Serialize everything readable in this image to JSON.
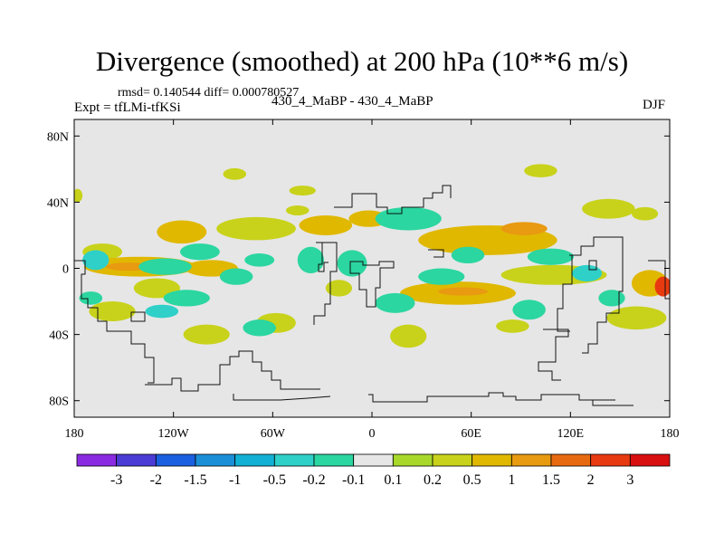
{
  "chart_data": {
    "type": "heatmap",
    "title": "Divergence (smoothed) at 200 hPa (10**6 m/s)",
    "stats": "rmsd= 0.140544 diff= 0.000780527",
    "left_label": "Expt = tfLMi-tfKSi",
    "center_label": "430_4_MaBP - 430_4_MaBP",
    "right_label": "DJF",
    "x_ticks": [
      {
        "value": -180,
        "label": "180"
      },
      {
        "value": -120,
        "label": "120W"
      },
      {
        "value": -60,
        "label": "60W"
      },
      {
        "value": 0,
        "label": "0"
      },
      {
        "value": 60,
        "label": "60E"
      },
      {
        "value": 120,
        "label": "120E"
      },
      {
        "value": 180,
        "label": "180"
      }
    ],
    "y_ticks": [
      {
        "value": 80,
        "label": "80N"
      },
      {
        "value": 40,
        "label": "40N"
      },
      {
        "value": 0,
        "label": "0"
      },
      {
        "value": -40,
        "label": "40S"
      },
      {
        "value": -80,
        "label": "80S"
      }
    ],
    "xlim": [
      -180,
      180
    ],
    "ylim": [
      -90,
      90
    ],
    "colorbar": {
      "labels": [
        "-3",
        "-2",
        "-1.5",
        "-1",
        "-0.5",
        "-0.2",
        "-0.1",
        "0.1",
        "0.2",
        "0.5",
        "1",
        "1.5",
        "2",
        "3"
      ],
      "colors": [
        "#8a2be2",
        "#4b3cd6",
        "#1a5fe0",
        "#1a8fd8",
        "#12b0d4",
        "#2ed0c8",
        "#2bd6a0",
        "#e6e6e6",
        "#a8d82a",
        "#c8d21a",
        "#e0b800",
        "#e89a10",
        "#e86a10",
        "#e83a10",
        "#d81010"
      ]
    },
    "positive_blobs": [
      {
        "lon": -163,
        "lat": 10,
        "rx": 12,
        "ry": 5,
        "value": 0.2
      },
      {
        "lon": -140,
        "lat": 1,
        "rx": 34,
        "ry": 6,
        "value": 0.5
      },
      {
        "lon": -147,
        "lat": 1,
        "rx": 14,
        "ry": 2.5,
        "value": 1
      },
      {
        "lon": -97,
        "lat": 0,
        "rx": 16,
        "ry": 5,
        "value": 0.5
      },
      {
        "lon": -115,
        "lat": 22,
        "rx": 15,
        "ry": 7,
        "value": 0.5
      },
      {
        "lon": -70,
        "lat": 24,
        "rx": 24,
        "ry": 7,
        "value": 0.2
      },
      {
        "lon": -28,
        "lat": 26,
        "rx": 16,
        "ry": 6,
        "value": 0.5
      },
      {
        "lon": -45,
        "lat": 35,
        "rx": 7,
        "ry": 3,
        "value": 0.2
      },
      {
        "lon": -2,
        "lat": 30,
        "rx": 12,
        "ry": 5,
        "value": 0.5
      },
      {
        "lon": -83,
        "lat": 57,
        "rx": 7,
        "ry": 3.5,
        "value": 0.2
      },
      {
        "lon": -42,
        "lat": 47,
        "rx": 8,
        "ry": 3,
        "value": 0.2
      },
      {
        "lon": 70,
        "lat": 17,
        "rx": 42,
        "ry": 9,
        "value": 0.5
      },
      {
        "lon": 92,
        "lat": 24,
        "rx": 14,
        "ry": 4,
        "value": 1
      },
      {
        "lon": 143,
        "lat": 36,
        "rx": 16,
        "ry": 6,
        "value": 0.2
      },
      {
        "lon": 165,
        "lat": 33,
        "rx": 8,
        "ry": 4,
        "value": 0.2
      },
      {
        "lon": 102,
        "lat": 59,
        "rx": 10,
        "ry": 4,
        "value": 0.2
      },
      {
        "lon": 110,
        "lat": -4,
        "rx": 32,
        "ry": 6,
        "value": 0.2
      },
      {
        "lon": 52,
        "lat": -15,
        "rx": 35,
        "ry": 7,
        "value": 0.5
      },
      {
        "lon": 55,
        "lat": -14,
        "rx": 15,
        "ry": 2.5,
        "value": 1
      },
      {
        "lon": 168,
        "lat": -9,
        "rx": 11,
        "ry": 8,
        "value": 0.5
      },
      {
        "lon": 176,
        "lat": -11,
        "rx": 5,
        "ry": 6,
        "value": 2
      },
      {
        "lon": 160,
        "lat": -30,
        "rx": 18,
        "ry": 7,
        "value": 0.2
      },
      {
        "lon": 85,
        "lat": -35,
        "rx": 10,
        "ry": 4,
        "value": 0.2
      },
      {
        "lon": -130,
        "lat": -12,
        "rx": 14,
        "ry": 6,
        "value": 0.2
      },
      {
        "lon": -157,
        "lat": -26,
        "rx": 14,
        "ry": 6,
        "value": 0.2
      },
      {
        "lon": -100,
        "lat": -40,
        "rx": 14,
        "ry": 6,
        "value": 0.2
      },
      {
        "lon": -58,
        "lat": -33,
        "rx": 12,
        "ry": 6,
        "value": 0.2
      },
      {
        "lon": 22,
        "lat": -41,
        "rx": 11,
        "ry": 7,
        "value": 0.2
      },
      {
        "lon": -20,
        "lat": -12,
        "rx": 8,
        "ry": 5,
        "value": 0.2
      },
      {
        "lon": -178,
        "lat": 44,
        "rx": 3,
        "ry": 4,
        "value": 0.2
      }
    ],
    "negative_blobs": [
      {
        "lon": -167,
        "lat": 5,
        "rx": 8,
        "ry": 6,
        "value": -0.5
      },
      {
        "lon": -125,
        "lat": 1,
        "rx": 16,
        "ry": 5,
        "value": -0.2
      },
      {
        "lon": -104,
        "lat": 10,
        "rx": 12,
        "ry": 5,
        "value": -0.2
      },
      {
        "lon": -112,
        "lat": -18,
        "rx": 14,
        "ry": 5,
        "value": -0.2
      },
      {
        "lon": -127,
        "lat": -26,
        "rx": 10,
        "ry": 4,
        "value": -0.5
      },
      {
        "lon": -82,
        "lat": -5,
        "rx": 10,
        "ry": 5,
        "value": -0.2
      },
      {
        "lon": -68,
        "lat": 5,
        "rx": 9,
        "ry": 4,
        "value": -0.2
      },
      {
        "lon": -37,
        "lat": 5,
        "rx": 8,
        "ry": 8,
        "value": -0.2
      },
      {
        "lon": -12,
        "lat": 3,
        "rx": 9,
        "ry": 8,
        "value": -0.2
      },
      {
        "lon": 22,
        "lat": 30,
        "rx": 20,
        "ry": 7,
        "value": -0.2
      },
      {
        "lon": 42,
        "lat": -5,
        "rx": 14,
        "ry": 5,
        "value": -0.2
      },
      {
        "lon": 14,
        "lat": -21,
        "rx": 12,
        "ry": 6,
        "value": -0.2
      },
      {
        "lon": 108,
        "lat": 7,
        "rx": 14,
        "ry": 5,
        "value": -0.2
      },
      {
        "lon": 95,
        "lat": -25,
        "rx": 10,
        "ry": 6,
        "value": -0.2
      },
      {
        "lon": 130,
        "lat": -3,
        "rx": 9,
        "ry": 5,
        "value": -0.5
      },
      {
        "lon": 145,
        "lat": -18,
        "rx": 8,
        "ry": 5,
        "value": -0.2
      },
      {
        "lon": -170,
        "lat": -18,
        "rx": 7,
        "ry": 4,
        "value": -0.2
      },
      {
        "lon": -68,
        "lat": -36,
        "rx": 10,
        "ry": 5,
        "value": -0.2
      },
      {
        "lon": 58,
        "lat": 8,
        "rx": 10,
        "ry": 5,
        "value": -0.2
      }
    ],
    "land_outline": [
      "M 369,229 L 389,229 L 389,214 L 416,214 L 416,229 L 428,229 L 428,236 L 444,236 L 444,229 L 468,229 L 468,219 L 478,219 L 478,213 L 489,213 L 489,205 L 498,205 L 498,219",
      "M 349,268 L 372,268 L 372,285 L 372,300 L 365,300 L 365,336 L 359,336 L 359,349 L 347,349 L 347,359",
      "M 356,268 L 356,292 L 352,292 L 352,300 L 358,300 L 358,290 L 363,290",
      "M 387,289 L 401,289 L 401,293 L 419,293 L 419,289 L 435,289 L 435,296 L 420,296 L 420,318 L 415,318 L 415,339 L 405,339 L 405,320 L 397,320 L 397,302 L 387,302 Z",
      "M 473,276 L 490,276 L 490,284 L 479,284",
      "M 629,282 L 642,282 L 642,272 L 656,272 L 656,262 L 688,262 L 688,322 L 684,322 L 684,346 L 670,346 L 670,356 L 660,356 L 660,380 L 650,380 L 650,390 L 643,390",
      "M 632,282 L 632,314 L 622,314 L 622,341 L 616,341 L 616,366 L 630,366",
      "M 651,288 L 659,288 L 659,298 L 651,298 Z",
      "M 82,288 L 94,288 L 94,303 L 90,303 L 90,330 L 97,330 L 97,340 L 108,340 L 108,355 L 118,355 L 118,366 L 145,366 L 145,380 L 160,380 L 160,395 L 170,395 L 170,423 L 163,423",
      "M 145,345 L 160,345 L 160,355 L 145,355 Z",
      "M 716,288 L 735,288 L 735,330 L 740,330",
      "M 600,364 L 628,364 L 628,372 L 614,372 L 614,400 L 595,400 L 595,410 L 610,410 L 610,420 L 620,420",
      "M 160,425 L 190,425 L 190,418 L 200,418 L 200,432 L 219,432 L 219,425 L 243,425 L 243,403 L 254,403 L 254,394 L 264,394 L 264,388 L 279,388 L 279,400 L 289,400 L 289,410 L 300,410 L 300,420 L 310,420 L 310,430 L 354,430",
      "M 258,435 L 258,442 L 310,442 L 340,440 L 365,438",
      "M 407,436 L 412,436 L 412,444 L 472,444 L 472,438 L 540,438 L 540,434 L 556,434 L 556,438 L 570,438 L 570,442 L 598,442 L 598,436 L 640,436 L 640,442 L 680,442",
      "M 655,442 L 655,448 L 700,448"
    ]
  }
}
